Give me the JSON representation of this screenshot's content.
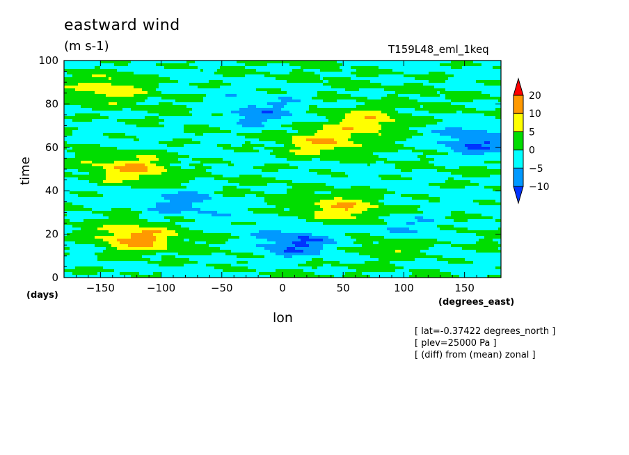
{
  "chart_data": {
    "type": "heatmap",
    "title": "eastward wind",
    "units": "(m s-1)",
    "run_name": "T159L48_eml_1keq",
    "xlabel": "lon",
    "ylabel": "time",
    "x_unit": "(degrees_east)",
    "y_unit": "(days)",
    "xlim": [
      -180,
      180
    ],
    "ylim": [
      0,
      100
    ],
    "x_ticks": [
      -150,
      -100,
      -50,
      0,
      50,
      100,
      150
    ],
    "y_ticks": [
      0,
      20,
      40,
      60,
      80,
      100
    ],
    "grid": false,
    "colorbar": {
      "placement": "right",
      "levels": [
        "20",
        "10",
        "5",
        "0",
        "-5",
        "-10"
      ],
      "colors": [
        "#ff0000",
        "#ff9900",
        "#ffff00",
        "#00dd00",
        "#00ffff",
        "#0099ff",
        "#0033ff"
      ]
    },
    "annotations": [
      "[ lat=-0.37422 degrees_north ]",
      "[ plev=25000 Pa ]",
      "[ (diff) from (mean) zonal ]"
    ],
    "field_features": [
      {
        "lon": -120,
        "time": 18,
        "value": 12
      },
      {
        "lon": -125,
        "time": 50,
        "value": 10
      },
      {
        "lon": -140,
        "time": 88,
        "value": 8
      },
      {
        "lon": 30,
        "time": 62,
        "value": 9
      },
      {
        "lon": 70,
        "time": 72,
        "value": 10
      },
      {
        "lon": 50,
        "time": 32,
        "value": 9
      },
      {
        "lon": 90,
        "time": 15,
        "value": 7
      },
      {
        "lon": -20,
        "time": 75,
        "value": -8
      },
      {
        "lon": 10,
        "time": 15,
        "value": -10
      },
      {
        "lon": 160,
        "time": 62,
        "value": -9
      },
      {
        "lon": 100,
        "time": 22,
        "value": -7
      },
      {
        "lon": -80,
        "time": 35,
        "value": -6
      }
    ]
  }
}
